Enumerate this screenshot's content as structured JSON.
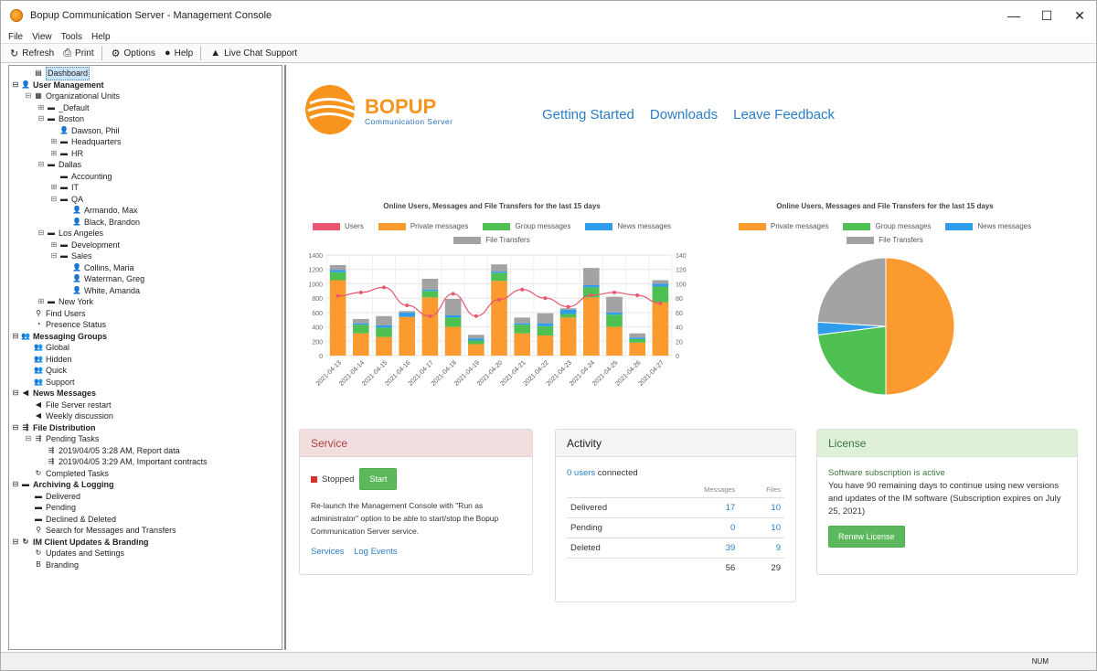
{
  "window": {
    "title": "Bopup Communication Server - Management Console",
    "controls": [
      "—",
      "☐",
      "✕"
    ]
  },
  "menu": [
    "File",
    "View",
    "Tools",
    "Help"
  ],
  "toolbar": {
    "refresh": "Refresh",
    "print": "Print",
    "options": "Options",
    "help": "Help",
    "live_chat": "Live Chat Support"
  },
  "tree": [
    {
      "label": "Dashboard",
      "depth": 1,
      "icon": "dashboard-icon",
      "glyph": "▤",
      "expander": "",
      "selected": true
    },
    {
      "label": "User Management",
      "depth": 0,
      "icon": "user-icon",
      "glyph": "👤",
      "expander": "⊟",
      "bold": true
    },
    {
      "label": "Organizational Units",
      "depth": 1,
      "icon": "org-icon",
      "glyph": "▦",
      "expander": "⊟"
    },
    {
      "label": "_Default",
      "depth": 2,
      "icon": "folder-icon",
      "glyph": "▬",
      "expander": "⊞"
    },
    {
      "label": "Boston",
      "depth": 2,
      "icon": "folder-icon",
      "glyph": "▬",
      "expander": "⊟"
    },
    {
      "label": "Dawson, Phil",
      "depth": 3,
      "icon": "user-icon",
      "glyph": "👤",
      "expander": ""
    },
    {
      "label": "Headquarters",
      "depth": 3,
      "icon": "folder-icon",
      "glyph": "▬",
      "expander": "⊞"
    },
    {
      "label": "HR",
      "depth": 3,
      "icon": "folder-icon",
      "glyph": "▬",
      "expander": "⊞"
    },
    {
      "label": "Dallas",
      "depth": 2,
      "icon": "folder-icon",
      "glyph": "▬",
      "expander": "⊟"
    },
    {
      "label": "Accounting",
      "depth": 3,
      "icon": "folder-icon",
      "glyph": "▬",
      "expander": ""
    },
    {
      "label": "IT",
      "depth": 3,
      "icon": "folder-icon",
      "glyph": "▬",
      "expander": "⊞"
    },
    {
      "label": "QA",
      "depth": 3,
      "icon": "folder-icon",
      "glyph": "▬",
      "expander": "⊟"
    },
    {
      "label": "Armando, Max",
      "depth": 4,
      "icon": "user-icon",
      "glyph": "👤",
      "expander": ""
    },
    {
      "label": "Black, Brandon",
      "depth": 4,
      "icon": "user-icon",
      "glyph": "👤",
      "expander": ""
    },
    {
      "label": "Los Angeles",
      "depth": 2,
      "icon": "folder-icon",
      "glyph": "▬",
      "expander": "⊟"
    },
    {
      "label": "Development",
      "depth": 3,
      "icon": "folder-icon",
      "glyph": "▬",
      "expander": "⊞"
    },
    {
      "label": "Sales",
      "depth": 3,
      "icon": "folder-icon",
      "glyph": "▬",
      "expander": "⊟"
    },
    {
      "label": "Collins, Maria",
      "depth": 4,
      "icon": "user-icon",
      "glyph": "👤",
      "expander": ""
    },
    {
      "label": "Waterman, Greg",
      "depth": 4,
      "icon": "user-icon",
      "glyph": "👤",
      "expander": ""
    },
    {
      "label": "White, Amanda",
      "depth": 4,
      "icon": "user-icon",
      "glyph": "👤",
      "expander": ""
    },
    {
      "label": "New York",
      "depth": 2,
      "icon": "folder-icon",
      "glyph": "▬",
      "expander": "⊞"
    },
    {
      "label": "Find Users",
      "depth": 1,
      "icon": "search-icon",
      "glyph": "⚲",
      "expander": ""
    },
    {
      "label": "Presence Status",
      "depth": 1,
      "icon": "presence-icon",
      "glyph": "◔",
      "expander": ""
    },
    {
      "label": "Messaging Groups",
      "depth": 0,
      "icon": "group-icon",
      "glyph": "👥",
      "expander": "⊟",
      "bold": true
    },
    {
      "label": "Global",
      "depth": 1,
      "icon": "group-icon",
      "glyph": "👥",
      "expander": ""
    },
    {
      "label": "Hidden",
      "depth": 1,
      "icon": "group-icon",
      "glyph": "👥",
      "expander": ""
    },
    {
      "label": "Quick",
      "depth": 1,
      "icon": "group-icon",
      "glyph": "👥",
      "expander": ""
    },
    {
      "label": "Support",
      "depth": 1,
      "icon": "group-icon",
      "glyph": "👥",
      "expander": ""
    },
    {
      "label": "News Messages",
      "depth": 0,
      "icon": "news-icon",
      "glyph": "◀",
      "expander": "⊟",
      "bold": true
    },
    {
      "label": "File Server restart",
      "depth": 1,
      "icon": "megaphone-icon",
      "glyph": "◀",
      "expander": ""
    },
    {
      "label": "Weekly discussion",
      "depth": 1,
      "icon": "megaphone-icon",
      "glyph": "◀",
      "expander": ""
    },
    {
      "label": "File Distribution",
      "depth": 0,
      "icon": "distribution-icon",
      "glyph": "⇶",
      "expander": "⊟",
      "bold": true
    },
    {
      "label": "Pending Tasks",
      "depth": 1,
      "icon": "tasks-icon",
      "glyph": "⇶",
      "expander": "⊟"
    },
    {
      "label": "2019/04/05 3:28 AM, Report data",
      "depth": 2,
      "icon": "file-task-icon",
      "glyph": "⇶",
      "expander": ""
    },
    {
      "label": "2019/04/05 3:29 AM, Important contracts",
      "depth": 2,
      "icon": "file-task-icon",
      "glyph": "⇶",
      "expander": ""
    },
    {
      "label": "Completed Tasks",
      "depth": 1,
      "icon": "completed-icon",
      "glyph": "↻",
      "expander": ""
    },
    {
      "label": "Archiving & Logging",
      "depth": 0,
      "icon": "archive-icon",
      "glyph": "▬",
      "expander": "⊟",
      "bold": true
    },
    {
      "label": "Delivered",
      "depth": 1,
      "icon": "archive-icon",
      "glyph": "▬",
      "expander": ""
    },
    {
      "label": "Pending",
      "depth": 1,
      "icon": "archive-icon",
      "glyph": "▬",
      "expander": ""
    },
    {
      "label": "Declined & Deleted",
      "depth": 1,
      "icon": "archive-icon",
      "glyph": "▬",
      "expander": ""
    },
    {
      "label": "Search for Messages and Transfers",
      "depth": 1,
      "icon": "search-icon",
      "glyph": "⚲",
      "expander": ""
    },
    {
      "label": "IM Client Updates & Branding",
      "depth": 0,
      "icon": "update-icon",
      "glyph": "↻",
      "expander": "⊟",
      "bold": true
    },
    {
      "label": "Updates and Settings",
      "depth": 1,
      "icon": "update-icon",
      "glyph": "↻",
      "expander": ""
    },
    {
      "label": "Branding",
      "depth": 1,
      "icon": "branding-icon",
      "glyph": "B",
      "expander": ""
    }
  ],
  "header": {
    "logo_text": "BOPUP",
    "logo_sub": "Communication Server",
    "links": [
      "Getting Started",
      "Downloads",
      "Leave Feedback"
    ]
  },
  "colors": {
    "users": "#e8566f",
    "private": "#fa9a2f",
    "group": "#4fc152",
    "news": "#2f9cec",
    "file": "#a3a3a3",
    "link": "#2a7ec8"
  },
  "chart_data": [
    {
      "type": "bar",
      "title": "Online Users, Messages and File Transfers for the last 15 days",
      "categories": [
        "2021-04-13",
        "2021-04-14",
        "2021-04-15",
        "2021-04-16",
        "2021-04-17",
        "2021-04-18",
        "2021-04-19",
        "2021-04-20",
        "2021-04-21",
        "2021-04-22",
        "2021-04-23",
        "2021-04-24",
        "2021-04-25",
        "2021-04-26",
        "2021-04-27"
      ],
      "stacked": true,
      "series": [
        {
          "name": "Private messages",
          "values": [
            1050,
            310,
            260,
            540,
            810,
            400,
            160,
            1040,
            310,
            280,
            530,
            810,
            400,
            180,
            740
          ]
        },
        {
          "name": "Group messages",
          "values": [
            110,
            120,
            130,
            0,
            90,
            130,
            50,
            110,
            120,
            130,
            50,
            140,
            170,
            50,
            220
          ]
        },
        {
          "name": "News messages",
          "values": [
            30,
            20,
            30,
            60,
            20,
            30,
            30,
            20,
            20,
            40,
            60,
            30,
            30,
            20,
            40
          ]
        },
        {
          "name": "File Transfers",
          "values": [
            70,
            60,
            130,
            20,
            150,
            230,
            50,
            100,
            80,
            140,
            20,
            240,
            220,
            60,
            50
          ]
        }
      ],
      "line_series": {
        "name": "Users",
        "values": [
          83,
          88,
          95,
          70,
          55,
          86,
          55,
          78,
          92,
          80,
          68,
          84,
          88,
          84,
          73
        ],
        "ylim": [
          0,
          140
        ]
      },
      "ylim": [
        0,
        1400
      ],
      "y_ticks_left": [
        0,
        200,
        400,
        600,
        800,
        1000,
        1200,
        1400
      ],
      "y_ticks_right": [
        0,
        20,
        40,
        60,
        80,
        100,
        120,
        140
      ],
      "legend": "top"
    },
    {
      "type": "pie",
      "title": "Online Users, Messages and File Transfers for the last 15 days",
      "categories": [
        "Private messages",
        "Group messages",
        "News messages",
        "File Transfers"
      ],
      "values": [
        50,
        23,
        3,
        24
      ],
      "legend": "top"
    }
  ],
  "service": {
    "title": "Service",
    "status": "Stopped",
    "start_label": "Start",
    "note": "Re-launch the Management Console with \"Run as administrator\" option to be able to start/stop the Bopup Communication Server service.",
    "links": [
      "Services",
      "Log Events"
    ]
  },
  "activity": {
    "title": "Activity",
    "users_link": "0 users",
    "connected": "connected",
    "col_messages": "Messages",
    "col_files": "Files",
    "rows": [
      {
        "label": "Delivered",
        "messages": "17",
        "files": "10"
      },
      {
        "label": "Pending",
        "messages": "0",
        "files": "10"
      },
      {
        "label": "Deleted",
        "messages": "39",
        "files": "9"
      }
    ],
    "total_messages": "56",
    "total_files": "29"
  },
  "license": {
    "title": "License",
    "status": "Software subscription is active",
    "text": "You have 90 remaining days to continue using new versions and updates of the IM software (Subscription expires on July 25, 2021)",
    "renew_label": "Renew License"
  },
  "statusbar": {
    "num": "NUM"
  }
}
